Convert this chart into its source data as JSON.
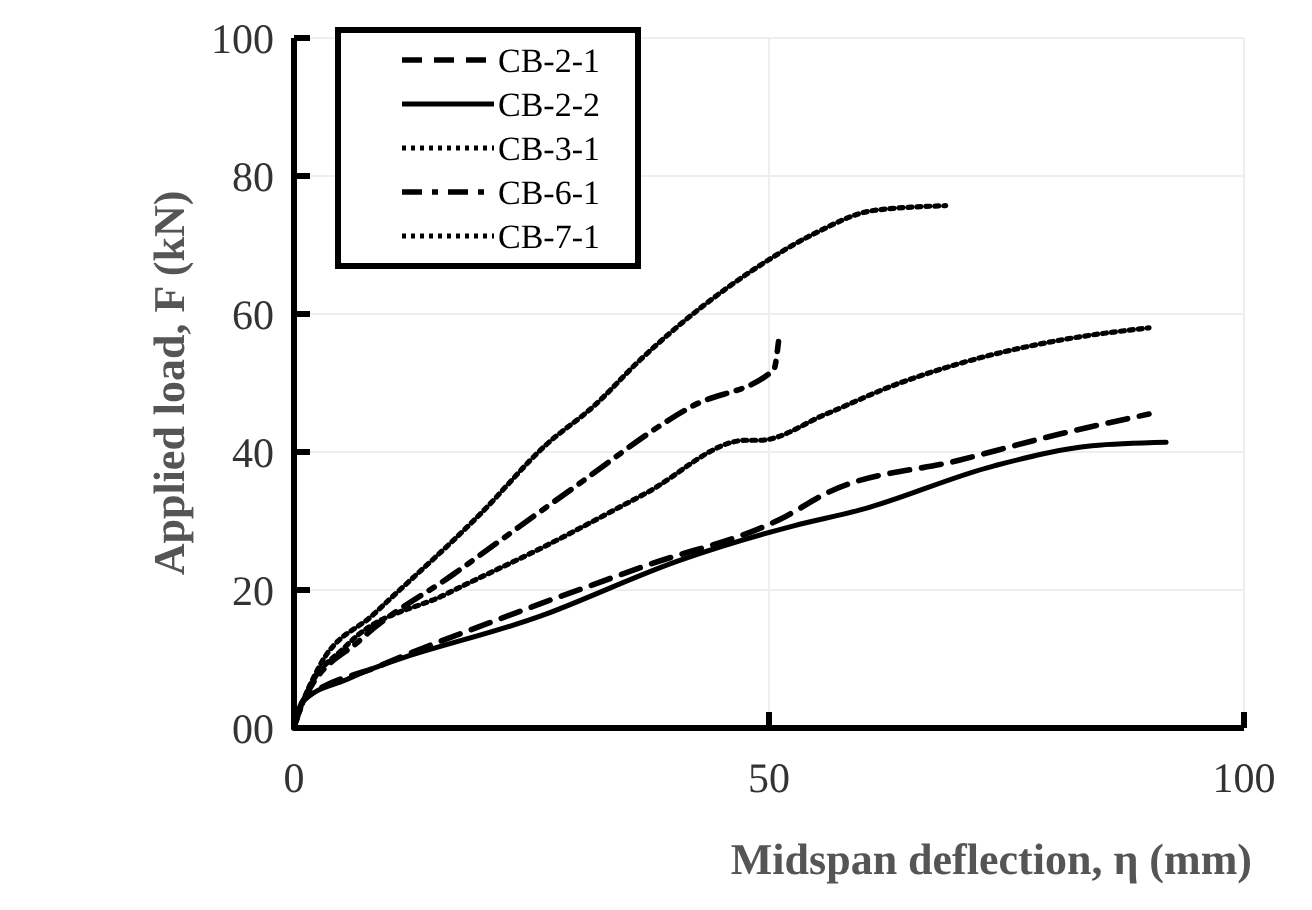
{
  "chart_data": {
    "type": "line",
    "xlabel": "Midspan deflection, η (mm)",
    "ylabel": "Applied load, F (kN)",
    "xlim": [
      0,
      100
    ],
    "xticks": [
      0,
      50,
      100
    ],
    "ylim": [
      0,
      100
    ],
    "yticks": [
      {
        "value": 0,
        "label": "00"
      },
      20,
      40,
      60,
      80,
      100
    ],
    "grid": true,
    "legend": "top left",
    "marker": "none",
    "series": [
      {
        "name": "CB-2-1",
        "color": "#000000",
        "line_style": "dashed",
        "x": [
          0,
          1,
          9,
          23,
          37,
          51.8,
          56,
          70,
          80.6,
          90
        ],
        "values": [
          0,
          4,
          9,
          16.5,
          23.5,
          30.7,
          34,
          38.8,
          42.6,
          45.5
        ]
      },
      {
        "name": "CB-2-2",
        "color": "#000000",
        "line_style": "solid",
        "x": [
          0,
          1,
          5.5,
          26.5,
          40.6,
          52.6,
          59.6,
          73.7,
          84,
          91.8
        ],
        "values": [
          0,
          4,
          7,
          16.5,
          24.3,
          29.3,
          31.6,
          38,
          40.9,
          41.4
        ]
      },
      {
        "name": "CB-3-1",
        "color": "#000000",
        "line_style": "dotted",
        "x": [
          0,
          1,
          2.7,
          8.4,
          19.6,
          26.5,
          31.6,
          36.4,
          49,
          54.7,
          61,
          68.6
        ],
        "values": [
          0,
          4,
          9,
          16.5,
          31,
          41,
          46.7,
          53.3,
          67,
          71.6,
          75,
          75.7
        ]
      },
      {
        "name": "CB-6-1",
        "color": "#000000",
        "line_style": "dashdot",
        "x": [
          0,
          1,
          7,
          16.8,
          28.6,
          42,
          50.5,
          51
        ],
        "values": [
          0,
          4,
          12.8,
          22.3,
          34,
          46.7,
          51.9,
          56
        ]
      },
      {
        "name": "CB-7-1",
        "color": "#000000",
        "line_style": "dotted",
        "x": [
          0,
          1,
          5.5,
          16,
          26.5,
          37,
          47.6,
          49,
          56,
          63,
          70,
          80.6,
          90
        ],
        "values": [
          0,
          4,
          11.9,
          19.4,
          26.4,
          34,
          41.7,
          41.7,
          45.5,
          49.6,
          52.8,
          56.2,
          58
        ]
      }
    ]
  }
}
